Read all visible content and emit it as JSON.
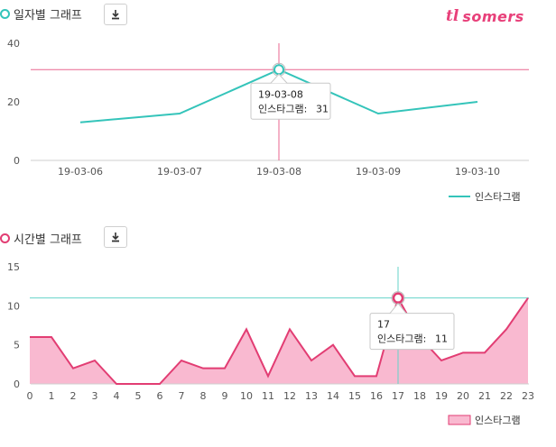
{
  "colors": {
    "teal": "#34c4ba",
    "pink": "#e23d73",
    "pink_fill": "#f9b9d0",
    "crosshair_pink": "#e8668f",
    "crosshair_teal": "#64d3ca"
  },
  "icons": {
    "download": "download-icon",
    "logo": "somers-logo"
  },
  "logo": {
    "mark": "tl",
    "text": "somers"
  },
  "chart_data": [
    {
      "type": "line",
      "title": "일자별 그래프",
      "categories": [
        "19-03-06",
        "19-03-07",
        "19-03-08",
        "19-03-09",
        "19-03-10"
      ],
      "series": [
        {
          "name": "인스타그램",
          "values": [
            13,
            16,
            31,
            16,
            20
          ]
        }
      ],
      "ylim": [
        0,
        40
      ],
      "yticks": [
        0,
        20,
        40
      ],
      "grid": false,
      "legend": "bottom-right",
      "tooltip": {
        "index": 2,
        "title": "19-03-08",
        "label": "인스타그램:",
        "value": "31"
      }
    },
    {
      "type": "area",
      "title": "시간별 그래프",
      "categories": [
        "0",
        "1",
        "2",
        "3",
        "4",
        "5",
        "6",
        "7",
        "8",
        "9",
        "10",
        "11",
        "12",
        "13",
        "14",
        "15",
        "16",
        "17",
        "18",
        "19",
        "20",
        "21",
        "22",
        "23"
      ],
      "series": [
        {
          "name": "인스타그램",
          "values": [
            6,
            6,
            2,
            3,
            0,
            0,
            0,
            3,
            2,
            2,
            7,
            1,
            7,
            3,
            5,
            1,
            1,
            11,
            6,
            3,
            4,
            4,
            7,
            11
          ]
        }
      ],
      "ylim": [
        0,
        15
      ],
      "yticks": [
        0,
        5,
        10,
        15
      ],
      "grid": false,
      "legend": "bottom-right",
      "tooltip": {
        "index": 17,
        "title": "17",
        "label": "인스타그램:",
        "value": "11"
      }
    }
  ]
}
